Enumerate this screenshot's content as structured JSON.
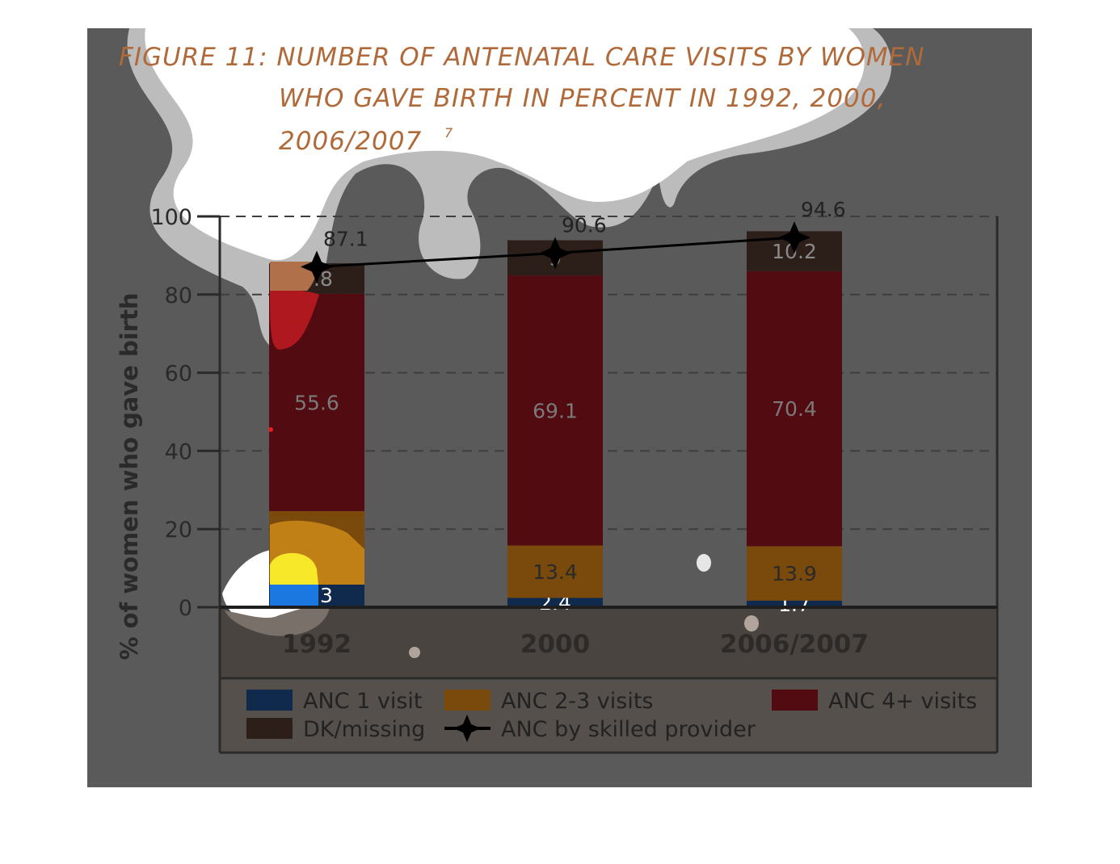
{
  "chart_data": {
    "type": "bar",
    "stacked": true,
    "title_lines": [
      "FIGURE 11: NUMBER OF ANTENATAL CARE VISITS  BY WOMEN",
      "WHO GAVE BIRTH IN PERCENT IN 1992, 2000,",
      "2006/2007"
    ],
    "title_footnote": "7",
    "ylabel": "% of women who gave birth",
    "ylim": [
      0,
      100
    ],
    "yticks": [
      0,
      20,
      40,
      60,
      80,
      100
    ],
    "grid": true,
    "legend_position": "bottom",
    "categories": [
      "1992",
      "2000",
      "2006/2007"
    ],
    "series": [
      {
        "name": "ANC 1 visit",
        "color": "#0f2a4d",
        "label_color": "#ffffff",
        "values": [
          6.3,
          2.4,
          1.7
        ]
      },
      {
        "name": "ANC 2-3 visits",
        "color": "#7a4a0c",
        "label_color": "#2a2a2a",
        "values": [
          18.3,
          13.4,
          13.9
        ]
      },
      {
        "name": "ANC 4+ visits",
        "color": "#520b10",
        "label_color": "#7a7a7a",
        "values": [
          55.6,
          69.1,
          70.4
        ]
      },
      {
        "name": "DK/missing",
        "color": "#2c1e18",
        "label_color": "#8a8a8a",
        "values": [
          7.8,
          9,
          10.2
        ]
      }
    ],
    "line_series": {
      "name": "ANC by skilled provider",
      "color": "#000000",
      "values": [
        87.1,
        90.6,
        94.6
      ]
    }
  }
}
